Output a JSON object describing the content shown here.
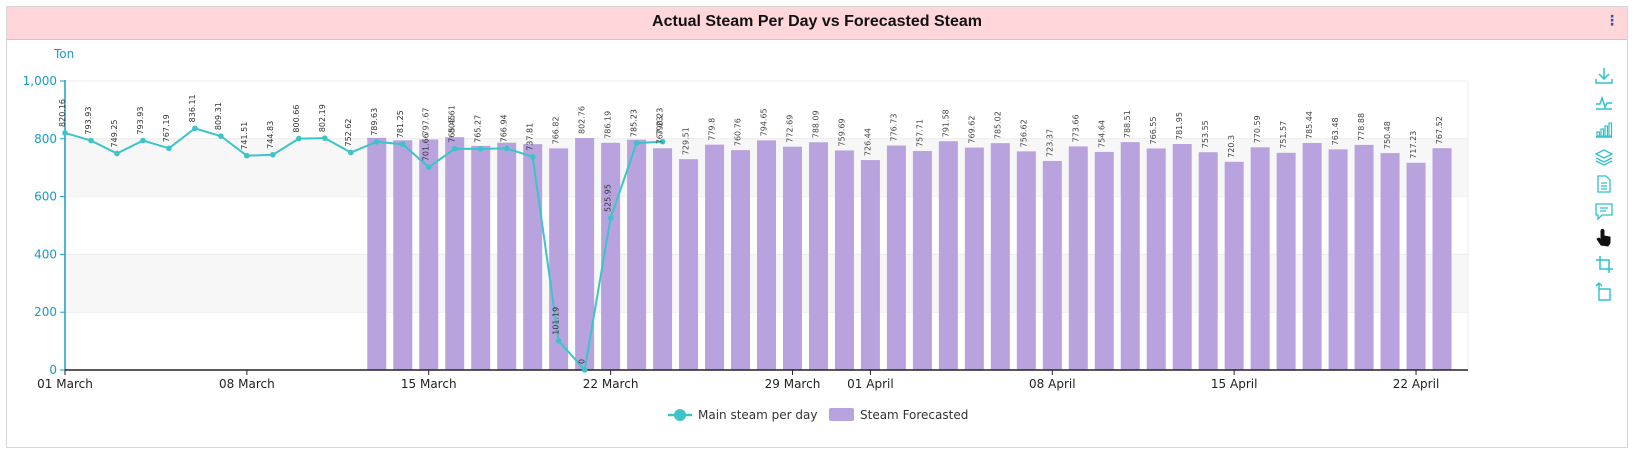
{
  "title": "Actual Steam Per Day vs Forecasted Steam",
  "menu_glyph": "⋮",
  "colors": {
    "title_bg": "#ffd6da",
    "line": "#3cc4c8",
    "bar": "#b8a3de",
    "axis": "#1a9bc7",
    "toolbar_icon": "#2ec3cc"
  },
  "toolbar": [
    {
      "name": "download-icon"
    },
    {
      "name": "line-chart-icon"
    },
    {
      "name": "bar-chart-icon"
    },
    {
      "name": "layers-icon"
    },
    {
      "name": "document-icon"
    },
    {
      "name": "comment-icon"
    },
    {
      "name": "hand-pointer-icon"
    },
    {
      "name": "crop-icon"
    },
    {
      "name": "rotate-icon"
    }
  ],
  "chart_data": {
    "type": "bar",
    "ylabel": "Ton",
    "ylim": [
      0,
      1000
    ],
    "yticks": [
      "0",
      "200",
      "400",
      "600",
      "800",
      "1,000"
    ],
    "x_start": "2024-03-01",
    "x_end": "2024-04-24",
    "x_ticks": [
      {
        "date": "2024-03-01",
        "label": "01 March"
      },
      {
        "date": "2024-03-08",
        "label": "08 March"
      },
      {
        "date": "2024-03-15",
        "label": "15 March"
      },
      {
        "date": "2024-03-22",
        "label": "22 March"
      },
      {
        "date": "2024-03-29",
        "label": "29 March"
      },
      {
        "date": "2024-04-01",
        "label": "01 April"
      },
      {
        "date": "2024-04-08",
        "label": "08 April"
      },
      {
        "date": "2024-04-15",
        "label": "15 April"
      },
      {
        "date": "2024-04-22",
        "label": "22 April"
      }
    ],
    "legend_position": "bottom-center",
    "series": [
      {
        "name": "Main steam per day",
        "type": "line",
        "data": [
          {
            "date": "2024-03-01",
            "value": 820.16,
            "label": "820.16"
          },
          {
            "date": "2024-03-02",
            "value": 793.93,
            "label": "793.93"
          },
          {
            "date": "2024-03-03",
            "value": 749.25,
            "label": "749.25"
          },
          {
            "date": "2024-03-04",
            "value": 793.93,
            "label": "793.93"
          },
          {
            "date": "2024-03-05",
            "value": 767.19,
            "label": "767.19"
          },
          {
            "date": "2024-03-06",
            "value": 836.11,
            "label": "836.11"
          },
          {
            "date": "2024-03-07",
            "value": 809.31,
            "label": "809.31"
          },
          {
            "date": "2024-03-08",
            "value": 741.51,
            "label": "741.51"
          },
          {
            "date": "2024-03-09",
            "value": 744.83,
            "label": "744.83"
          },
          {
            "date": "2024-03-10",
            "value": 800.66,
            "label": "800.66"
          },
          {
            "date": "2024-03-11",
            "value": 802.19,
            "label": "802.19"
          },
          {
            "date": "2024-03-12",
            "value": 752.62,
            "label": "752.62"
          },
          {
            "date": "2024-03-13",
            "value": 789.63,
            "label": "789.63"
          },
          {
            "date": "2024-03-14",
            "value": 781.25,
            "label": "781.25"
          },
          {
            "date": "2024-03-15",
            "value": 701.66,
            "label": "701.66"
          },
          {
            "date": "2024-03-16",
            "value": 765.45,
            "label": "765.45"
          },
          {
            "date": "2024-03-17",
            "value": 765.27,
            "label": "765.27"
          },
          {
            "date": "2024-03-18",
            "value": 766.94,
            "label": "766.94"
          },
          {
            "date": "2024-03-19",
            "value": 737.81,
            "label": "737.81"
          },
          {
            "date": "2024-03-20",
            "value": 101.19,
            "label": "101.19"
          },
          {
            "date": "2024-03-21",
            "value": 0,
            "label": "0"
          },
          {
            "date": "2024-03-22",
            "value": 525.95,
            "label": "525.95"
          },
          {
            "date": "2024-03-23",
            "value": 785.23,
            "label": "785.23"
          },
          {
            "date": "2024-03-24",
            "value": 790.23,
            "label": "790.23"
          }
        ]
      },
      {
        "name": "Steam Forecasted",
        "type": "bar",
        "data": [
          {
            "date": "2024-03-13",
            "value": 803.5,
            "label": ""
          },
          {
            "date": "2024-03-14",
            "value": 794.79,
            "label": ""
          },
          {
            "date": "2024-03-15",
            "value": 797.67,
            "label": "797.67"
          },
          {
            "date": "2024-03-16",
            "value": 805.61,
            "label": "805.61"
          },
          {
            "date": "2024-03-17",
            "value": 775.49,
            "label": ""
          },
          {
            "date": "2024-03-18",
            "value": 786.58,
            "label": ""
          },
          {
            "date": "2024-03-19",
            "value": 781.5,
            "label": ""
          },
          {
            "date": "2024-03-20",
            "value": 766.82,
            "label": "766.82"
          },
          {
            "date": "2024-03-21",
            "value": 802.76,
            "label": "802.76"
          },
          {
            "date": "2024-03-22",
            "value": 786.19,
            "label": "786.19"
          },
          {
            "date": "2024-03-23",
            "value": 796.87,
            "label": ""
          },
          {
            "date": "2024-03-24",
            "value": 767.23,
            "label": "767.23"
          },
          {
            "date": "2024-03-25",
            "value": 729.51,
            "label": "729.51"
          },
          {
            "date": "2024-03-26",
            "value": 779.8,
            "label": "779.8"
          },
          {
            "date": "2024-03-27",
            "value": 760.76,
            "label": "760.76"
          },
          {
            "date": "2024-03-28",
            "value": 794.65,
            "label": "794.65"
          },
          {
            "date": "2024-03-29",
            "value": 772.69,
            "label": "772.69"
          },
          {
            "date": "2024-03-30",
            "value": 788.09,
            "label": "788.09"
          },
          {
            "date": "2024-03-31",
            "value": 759.69,
            "label": "759.69"
          },
          {
            "date": "2024-04-01",
            "value": 726.44,
            "label": "726.44"
          },
          {
            "date": "2024-04-02",
            "value": 776.73,
            "label": "776.73"
          },
          {
            "date": "2024-04-03",
            "value": 757.71,
            "label": "757.71"
          },
          {
            "date": "2024-04-04",
            "value": 791.58,
            "label": "791.58"
          },
          {
            "date": "2024-04-05",
            "value": 769.62,
            "label": "769.62"
          },
          {
            "date": "2024-04-06",
            "value": 785.02,
            "label": "785.02"
          },
          {
            "date": "2024-04-07",
            "value": 756.62,
            "label": "756.62"
          },
          {
            "date": "2024-04-08",
            "value": 723.37,
            "label": "723.37"
          },
          {
            "date": "2024-04-09",
            "value": 773.66,
            "label": "773.66"
          },
          {
            "date": "2024-04-10",
            "value": 754.64,
            "label": "754.64"
          },
          {
            "date": "2024-04-11",
            "value": 788.51,
            "label": "788.51"
          },
          {
            "date": "2024-04-12",
            "value": 766.55,
            "label": "766.55"
          },
          {
            "date": "2024-04-13",
            "value": 781.95,
            "label": "781.95"
          },
          {
            "date": "2024-04-14",
            "value": 753.55,
            "label": "753.55"
          },
          {
            "date": "2024-04-15",
            "value": 720.3,
            "label": "720.3"
          },
          {
            "date": "2024-04-16",
            "value": 770.59,
            "label": "770.59"
          },
          {
            "date": "2024-04-17",
            "value": 751.57,
            "label": "751.57"
          },
          {
            "date": "2024-04-18",
            "value": 785.44,
            "label": "785.44"
          },
          {
            "date": "2024-04-19",
            "value": 763.48,
            "label": "763.48"
          },
          {
            "date": "2024-04-20",
            "value": 778.88,
            "label": "778.88"
          },
          {
            "date": "2024-04-21",
            "value": 750.48,
            "label": "750.48"
          },
          {
            "date": "2024-04-22",
            "value": 717.23,
            "label": "717.23"
          },
          {
            "date": "2024-04-23",
            "value": 767.52,
            "label": "767.52"
          }
        ]
      }
    ]
  }
}
